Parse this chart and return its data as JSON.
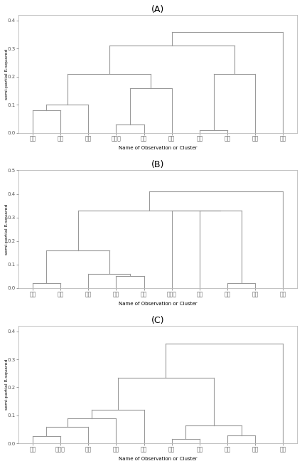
{
  "title_A": "(A)",
  "title_B": "(B)",
  "title_C": "(C)",
  "ylabel": "semi-partial R-squared",
  "xlabel": "Name of Observation or Cluster",
  "background_color": "#ffffff",
  "line_color": "#999999",
  "A": {
    "labels": [
      "영흥",
      "영동",
      "당진",
      "삼천포",
      "보령",
      "서천",
      "호남",
      "하동",
      "태안",
      "동해"
    ],
    "ylim": [
      0.0,
      0.42
    ],
    "yticks": [
      0.0,
      0.1,
      0.2,
      0.3,
      0.4
    ]
  },
  "B": {
    "labels": [
      "영흥",
      "호남",
      "영동",
      "보령",
      "당진",
      "삼천포",
      "서천",
      "하동",
      "태안",
      "동해"
    ],
    "ylim": [
      0.0,
      0.5
    ],
    "yticks": [
      0.0,
      0.1,
      0.2,
      0.3,
      0.4,
      0.5
    ]
  },
  "C": {
    "labels": [
      "영흥",
      "삼천포",
      "보령",
      "영동",
      "서천",
      "당진",
      "태안",
      "호남",
      "하동",
      "동해"
    ],
    "ylim": [
      0.0,
      0.42
    ],
    "yticks": [
      0.0,
      0.1,
      0.2,
      0.3,
      0.4
    ]
  }
}
